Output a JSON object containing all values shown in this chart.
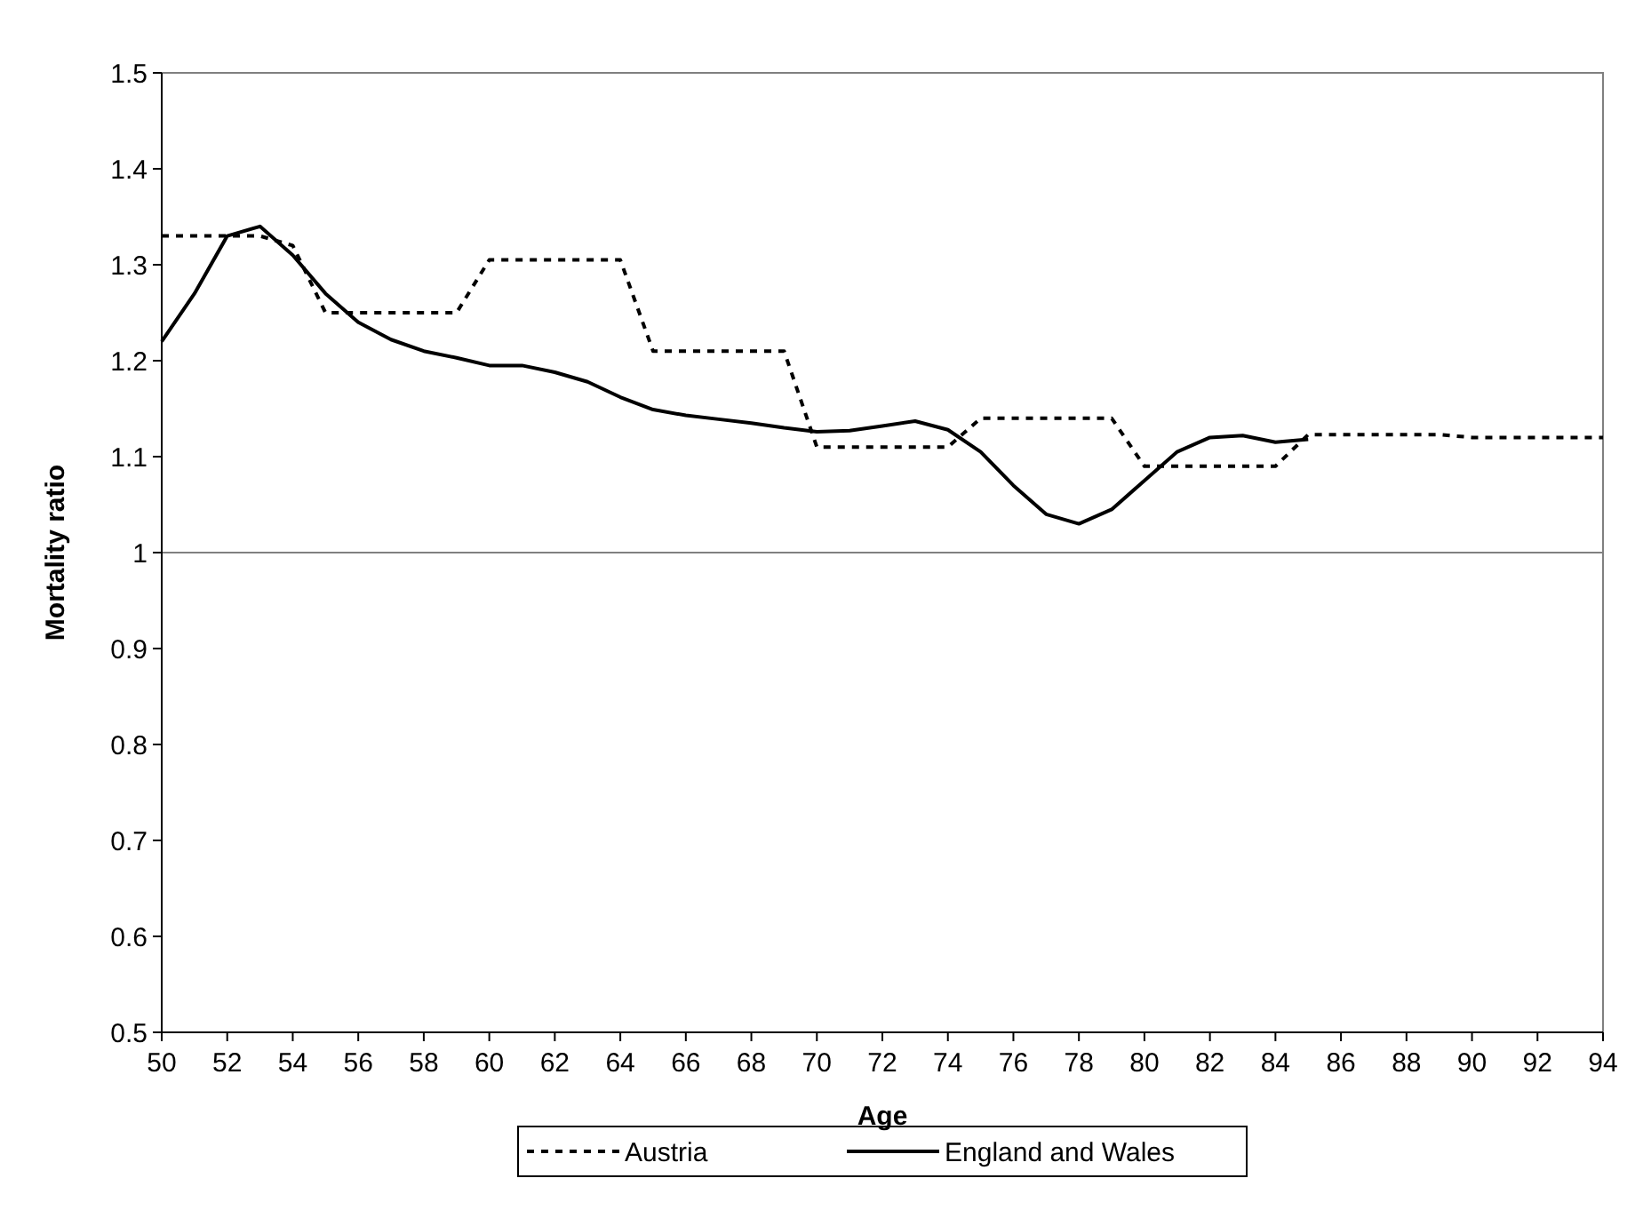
{
  "chart_data": {
    "type": "line",
    "xlabel": "Age",
    "ylabel": "Mortality ratio",
    "x": [
      50,
      51,
      52,
      53,
      54,
      55,
      56,
      57,
      58,
      59,
      60,
      61,
      62,
      63,
      64,
      65,
      66,
      67,
      68,
      69,
      70,
      71,
      72,
      73,
      74,
      75,
      76,
      77,
      78,
      79,
      80,
      81,
      82,
      83,
      84,
      85,
      86,
      87,
      88,
      89,
      90,
      91,
      92,
      93,
      94
    ],
    "xlim": [
      50,
      94
    ],
    "xticks": [
      50,
      52,
      54,
      56,
      58,
      60,
      62,
      64,
      66,
      68,
      70,
      72,
      74,
      76,
      78,
      80,
      82,
      84,
      86,
      88,
      90,
      92,
      94
    ],
    "ylim": [
      0.5,
      1.5
    ],
    "yticks": [
      0.5,
      0.6,
      0.7,
      0.8,
      0.9,
      1,
      1.1,
      1.2,
      1.3,
      1.4,
      1.5
    ],
    "grid": false,
    "legend": "bottom",
    "marker": "none",
    "ref_lines": [
      {
        "axis": "y",
        "value": 1,
        "color": "#808080"
      }
    ],
    "series": [
      {
        "name": "Austria",
        "color": "#000000",
        "line_style": "dashed",
        "values": [
          1.33,
          1.33,
          1.33,
          1.33,
          1.32,
          1.25,
          1.25,
          1.25,
          1.25,
          1.25,
          1.305,
          1.305,
          1.305,
          1.305,
          1.305,
          1.21,
          1.21,
          1.21,
          1.21,
          1.21,
          1.11,
          1.11,
          1.11,
          1.11,
          1.11,
          1.14,
          1.14,
          1.14,
          1.14,
          1.14,
          1.09,
          1.09,
          1.09,
          1.09,
          1.09,
          1.123,
          1.123,
          1.123,
          1.123,
          1.123,
          1.12,
          1.12,
          1.12,
          1.12,
          1.12
        ]
      },
      {
        "name": "England and Wales",
        "color": "#000000",
        "line_style": "solid",
        "x": [
          50,
          51,
          52,
          53,
          54,
          55,
          56,
          57,
          58,
          59,
          60,
          61,
          62,
          63,
          64,
          65,
          66,
          67,
          68,
          69,
          70,
          71,
          72,
          73,
          74,
          75,
          76,
          77,
          78,
          79,
          80,
          81,
          82,
          83,
          84,
          85
        ],
        "values": [
          1.22,
          1.27,
          1.33,
          1.34,
          1.31,
          1.27,
          1.24,
          1.222,
          1.21,
          1.203,
          1.195,
          1.195,
          1.188,
          1.178,
          1.162,
          1.149,
          1.143,
          1.139,
          1.135,
          1.13,
          1.126,
          1.127,
          1.132,
          1.137,
          1.128,
          1.105,
          1.07,
          1.04,
          1.03,
          1.045,
          1.075,
          1.105,
          1.12,
          1.122,
          1.115,
          1.118
        ]
      }
    ]
  }
}
